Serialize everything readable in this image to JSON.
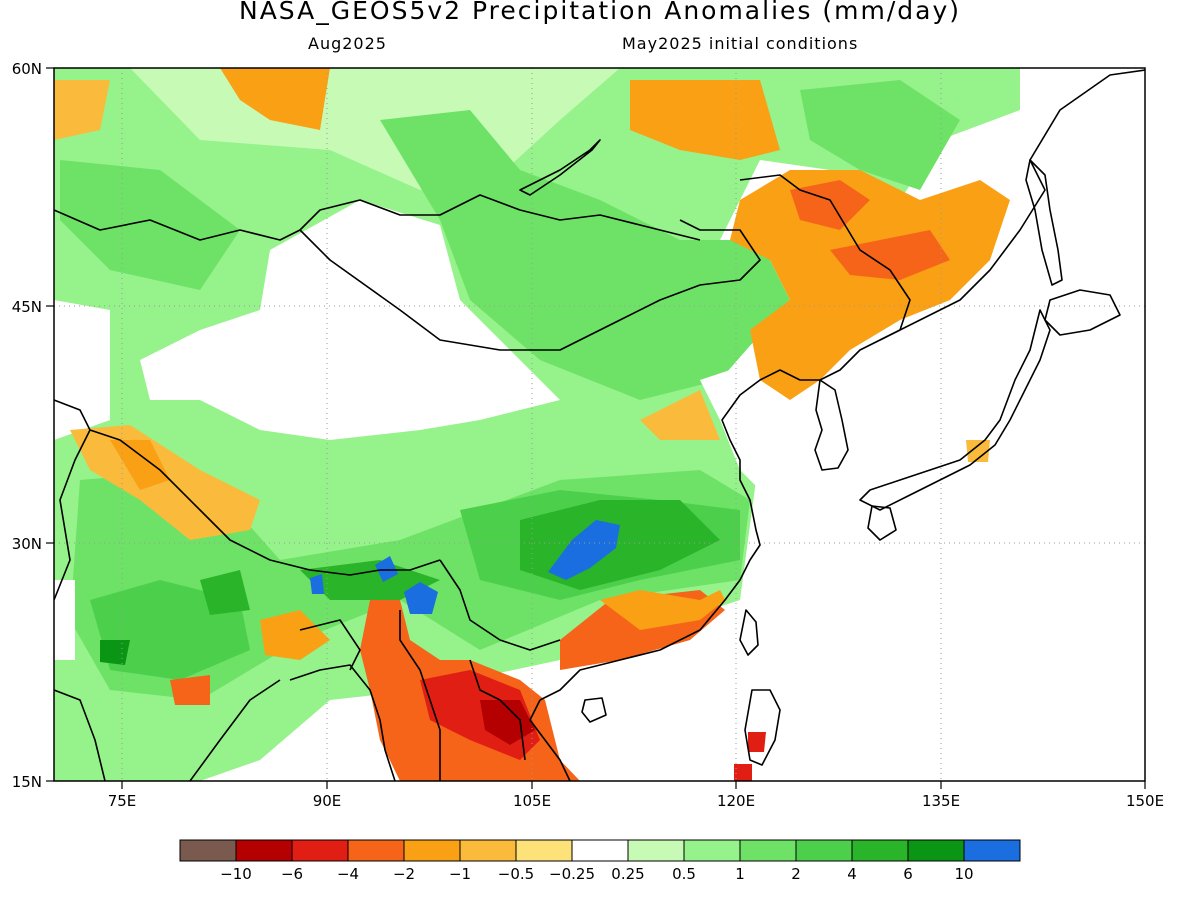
{
  "title": "NASA_GEOS5v2 Precipitation Anomalies (mm/day)",
  "subtitle_left": "Aug2025",
  "subtitle_right": "May2025 initial conditions",
  "map": {
    "lat_range": [
      15,
      60
    ],
    "lon_range": [
      70,
      150
    ],
    "lat_ticks": [
      "15N",
      "30N",
      "45N",
      "60N"
    ],
    "lon_ticks": [
      "75E",
      "90E",
      "105E",
      "120E",
      "135E",
      "150E"
    ]
  },
  "colorbar": {
    "labels": [
      "-10",
      "-6",
      "-4",
      "-2",
      "-1",
      "-0.5",
      "-0.25",
      "0.25",
      "0.5",
      "1",
      "2",
      "4",
      "6",
      "10"
    ],
    "colors": [
      "#7a5a4e",
      "#b40000",
      "#e01e14",
      "#f56418",
      "#faa014",
      "#fabb3c",
      "#fde27a",
      "#ffffff",
      "#c7fbb5",
      "#96f28a",
      "#6ee266",
      "#4cd04c",
      "#2ab42a",
      "#0a9614",
      "#1a6edf"
    ]
  }
}
